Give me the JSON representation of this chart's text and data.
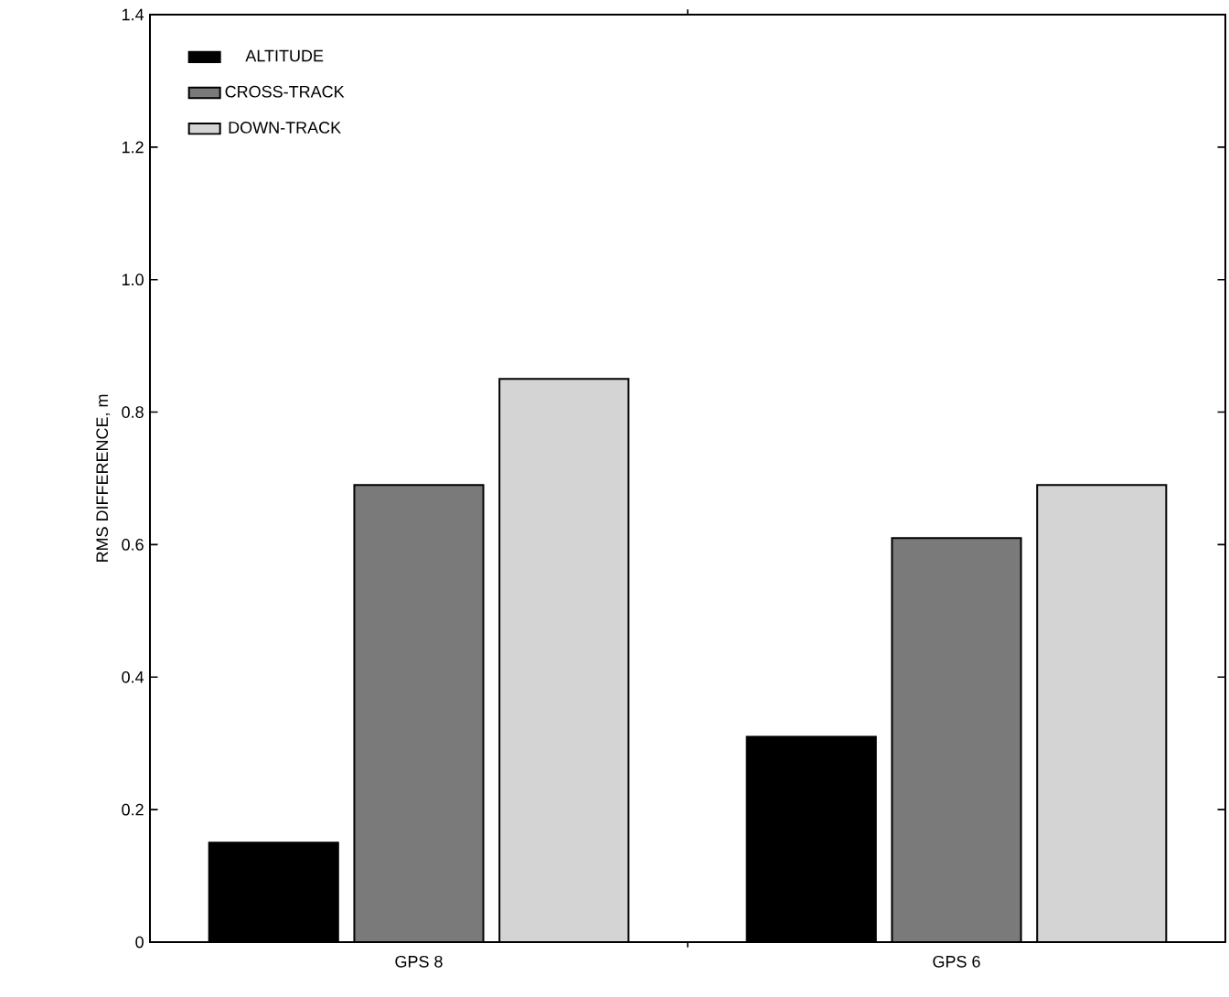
{
  "chart_data": {
    "type": "bar",
    "ylabel": "RMS DIFFERENCE, m",
    "categories": [
      "GPS 8",
      "GPS 6"
    ],
    "series": [
      {
        "name": "ALTITUDE",
        "color": "#000000",
        "values": [
          0.15,
          0.31
        ]
      },
      {
        "name": "CROSS-TRACK",
        "color": "#7a7a7a",
        "values": [
          0.69,
          0.61
        ]
      },
      {
        "name": "DOWN-TRACK",
        "color": "#d4d4d4",
        "values": [
          0.85,
          0.69
        ]
      }
    ],
    "ylim": [
      0,
      1.4
    ],
    "yticks": [
      0,
      0.2,
      0.4,
      0.6,
      0.8,
      {
        "value": 1.0,
        "label": "1.0"
      },
      1.2,
      1.4
    ],
    "grid": false,
    "legend": "top left"
  }
}
